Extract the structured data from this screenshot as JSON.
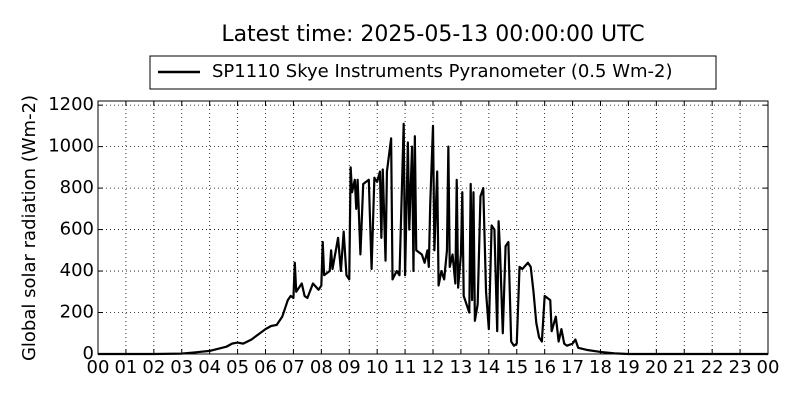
{
  "chart_data": {
    "type": "line",
    "title": "Latest time: 2025-05-13 00:00:00 UTC",
    "y_label": "Global solar radiation (Wm-2)",
    "xlim": [
      0,
      24
    ],
    "xticks": [
      {
        "value": 0,
        "label": "00"
      },
      {
        "value": 1,
        "label": "01"
      },
      {
        "value": 2,
        "label": "02"
      },
      {
        "value": 3,
        "label": "03"
      },
      {
        "value": 4,
        "label": "04"
      },
      {
        "value": 5,
        "label": "05"
      },
      {
        "value": 6,
        "label": "06"
      },
      {
        "value": 7,
        "label": "07"
      },
      {
        "value": 8,
        "label": "08"
      },
      {
        "value": 9,
        "label": "09"
      },
      {
        "value": 10,
        "label": "10"
      },
      {
        "value": 11,
        "label": "11"
      },
      {
        "value": 12,
        "label": "12"
      },
      {
        "value": 13,
        "label": "13"
      },
      {
        "value": 14,
        "label": "14"
      },
      {
        "value": 15,
        "label": "15"
      },
      {
        "value": 16,
        "label": "16"
      },
      {
        "value": 17,
        "label": "17"
      },
      {
        "value": 18,
        "label": "18"
      },
      {
        "value": 19,
        "label": "19"
      },
      {
        "value": 20,
        "label": "20"
      },
      {
        "value": 21,
        "label": "21"
      },
      {
        "value": 22,
        "label": "22"
      },
      {
        "value": 23,
        "label": "23"
      },
      {
        "value": 24,
        "label": "00"
      }
    ],
    "ylim": [
      0,
      1220
    ],
    "yticks": [
      0,
      200,
      400,
      600,
      800,
      1000,
      1200
    ],
    "grid": true,
    "legend": "top",
    "series": [
      {
        "name": "SP1110 Skye Instruments Pyranometer (0.5 Wm-2)",
        "color": "#000000",
        "x": [
          0,
          2,
          3,
          3.5,
          4,
          4.3,
          4.6,
          4.8,
          5,
          5.2,
          5.5,
          5.8,
          6,
          6.2,
          6.4,
          6.6,
          6.8,
          6.9,
          7.0,
          7.05,
          7.1,
          7.3,
          7.4,
          7.5,
          7.7,
          7.9,
          8.0,
          8.05,
          8.1,
          8.3,
          8.35,
          8.4,
          8.6,
          8.7,
          8.8,
          8.9,
          9.0,
          9.05,
          9.1,
          9.2,
          9.25,
          9.3,
          9.4,
          9.5,
          9.7,
          9.8,
          9.9,
          10.0,
          10.1,
          10.15,
          10.2,
          10.3,
          10.35,
          10.5,
          10.55,
          10.7,
          10.8,
          10.95,
          11.0,
          11.1,
          11.15,
          11.25,
          11.3,
          11.35,
          11.4,
          11.6,
          11.7,
          11.8,
          11.85,
          11.9,
          12.0,
          12.05,
          12.15,
          12.2,
          12.3,
          12.4,
          12.5,
          12.55,
          12.6,
          12.7,
          12.8,
          12.85,
          12.9,
          13.0,
          13.05,
          13.1,
          13.2,
          13.3,
          13.35,
          13.4,
          13.45,
          13.5,
          13.6,
          13.7,
          13.8,
          13.9,
          14.0,
          14.1,
          14.2,
          14.3,
          14.35,
          14.4,
          14.5,
          14.6,
          14.7,
          14.8,
          14.9,
          15.0,
          15.1,
          15.2,
          15.4,
          15.5,
          15.6,
          15.7,
          15.8,
          15.9,
          16.0,
          16.2,
          16.25,
          16.4,
          16.5,
          16.6,
          16.7,
          16.8,
          17.0,
          17.1,
          17.2,
          17.5,
          18,
          18.5,
          19,
          24
        ],
        "values": [
          0,
          0,
          2,
          8,
          15,
          25,
          35,
          50,
          55,
          50,
          70,
          100,
          120,
          135,
          140,
          180,
          260,
          280,
          270,
          440,
          300,
          340,
          280,
          270,
          340,
          310,
          330,
          540,
          380,
          400,
          500,
          410,
          560,
          400,
          590,
          380,
          360,
          900,
          780,
          840,
          700,
          840,
          480,
          820,
          840,
          410,
          850,
          830,
          880,
          560,
          890,
          450,
          880,
          1040,
          360,
          400,
          380,
          1110,
          380,
          1020,
          600,
          1000,
          400,
          1050,
          500,
          480,
          440,
          500,
          420,
          720,
          1100,
          500,
          880,
          330,
          400,
          360,
          500,
          1000,
          420,
          480,
          340,
          840,
          320,
          480,
          780,
          280,
          240,
          200,
          820,
          260,
          780,
          160,
          240,
          760,
          800,
          300,
          120,
          620,
          600,
          110,
          640,
          500,
          100,
          520,
          540,
          60,
          40,
          50,
          420,
          410,
          440,
          420,
          300,
          150,
          80,
          60,
          280,
          260,
          110,
          180,
          60,
          120,
          50,
          40,
          50,
          70,
          30,
          20,
          10,
          3,
          0,
          0
        ]
      }
    ]
  }
}
